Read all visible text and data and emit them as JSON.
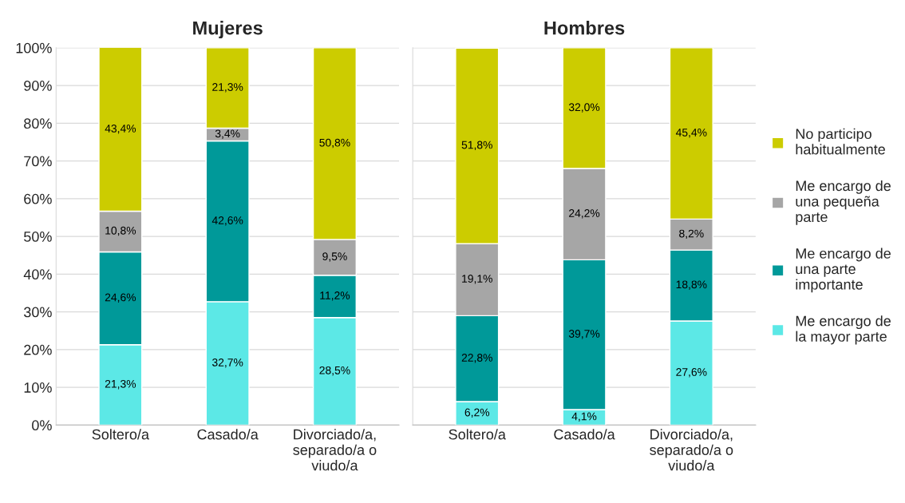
{
  "chart_data": [
    {
      "type": "bar",
      "title": "Mujeres",
      "stacked": true,
      "categories": [
        "Soltero/a",
        "Casado/a",
        "Divorciado/a,\nseparado/a o\nviudo/a"
      ],
      "series": [
        {
          "color": "#5ce8e6",
          "values": [
            21.3,
            32.7,
            28.5
          ],
          "value_labels": [
            "21,3%",
            "32,7%",
            "28,5%"
          ]
        },
        {
          "color": "#009999",
          "values": [
            24.6,
            42.6,
            11.2
          ],
          "value_labels": [
            "24,6%",
            "42,6%",
            "11,2%"
          ]
        },
        {
          "color": "#a6a6a6",
          "values": [
            10.8,
            3.4,
            9.5
          ],
          "value_labels": [
            "10,8%",
            "3,4%",
            "9,5%"
          ]
        },
        {
          "color": "#cccc00",
          "values": [
            43.4,
            21.3,
            50.8
          ],
          "value_labels": [
            "43,4%",
            "21,3%",
            "50,8%"
          ]
        }
      ],
      "ylim": [
        0,
        100
      ],
      "yticks": [
        {
          "value": 0,
          "label": "0%"
        },
        {
          "value": 10,
          "label": "10%"
        },
        {
          "value": 20,
          "label": "20%"
        },
        {
          "value": 30,
          "label": "30%"
        },
        {
          "value": 40,
          "label": "40%"
        },
        {
          "value": 50,
          "label": "50%"
        },
        {
          "value": 60,
          "label": "60%"
        },
        {
          "value": 70,
          "label": "70%"
        },
        {
          "value": 80,
          "label": "80%"
        },
        {
          "value": 90,
          "label": "90%"
        },
        {
          "value": 100,
          "label": "100%"
        }
      ],
      "grid": "y"
    },
    {
      "type": "bar",
      "title": "Hombres",
      "stacked": true,
      "categories": [
        "Soltero/a",
        "Casado/a",
        "Divorciado/a,\nseparado/a o\nviudo/a"
      ],
      "series": [
        {
          "name": "Me encargo de\nla mayor parte",
          "color": "#5ce8e6",
          "values": [
            6.2,
            4.1,
            27.6
          ],
          "value_labels": [
            "6,2%",
            "4,1%",
            "27,6%"
          ]
        },
        {
          "name": "Me encargo de\nuna parte\nimportante",
          "color": "#009999",
          "values": [
            22.8,
            39.7,
            18.8
          ],
          "value_labels": [
            "22,8%",
            "39,7%",
            "18,8%"
          ]
        },
        {
          "name": "Me encargo de\nuna pequeña\nparte",
          "color": "#a6a6a6",
          "values": [
            19.1,
            24.2,
            8.2
          ],
          "value_labels": [
            "19,1%",
            "24,2%",
            "8,2%"
          ]
        },
        {
          "name": "No participo\nhabitualmente",
          "color": "#cccc00",
          "values": [
            51.8,
            32.0,
            45.4
          ],
          "value_labels": [
            "51,8%",
            "32,0%",
            "45,4%"
          ]
        }
      ],
      "ylim": [
        0,
        100
      ],
      "yticks": [
        {
          "value": 0,
          "label": null
        },
        {
          "value": 10,
          "label": null
        },
        {
          "value": 20,
          "label": null
        },
        {
          "value": 30,
          "label": null
        },
        {
          "value": 40,
          "label": null
        },
        {
          "value": 50,
          "label": null
        },
        {
          "value": 60,
          "label": null
        },
        {
          "value": 70,
          "label": null
        },
        {
          "value": 80,
          "label": null
        },
        {
          "value": 90,
          "label": null
        },
        {
          "value": 100,
          "label": null
        }
      ],
      "tick_labels": "x",
      "grid": "y",
      "legend": "right"
    }
  ]
}
